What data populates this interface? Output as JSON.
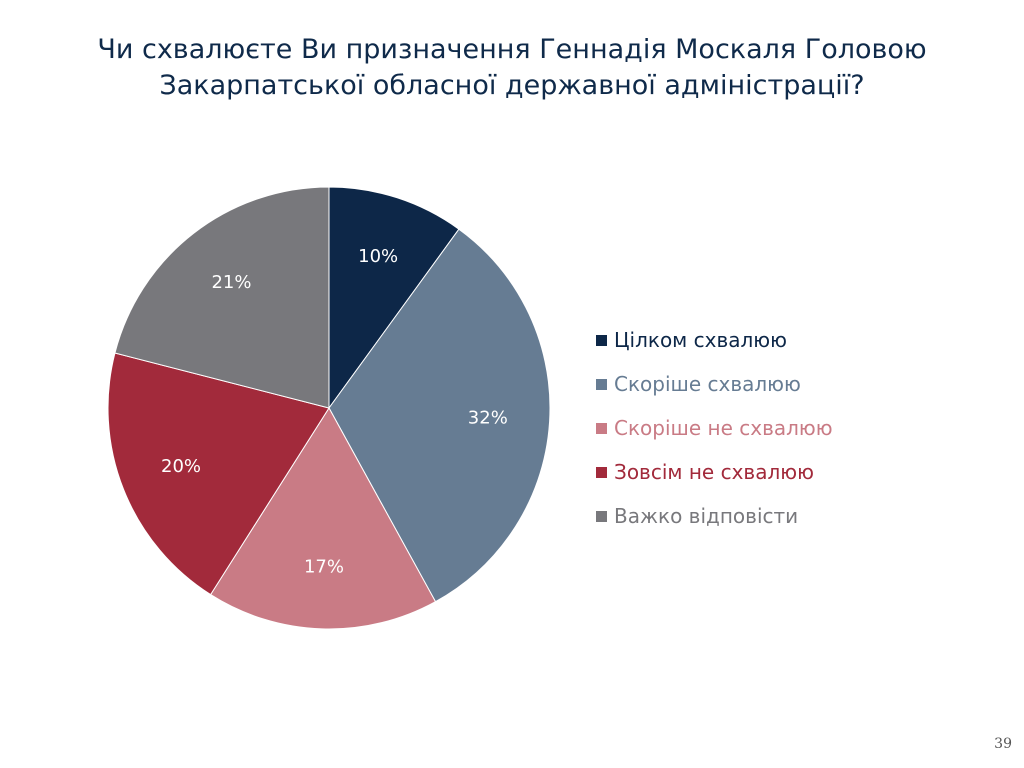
{
  "slide": {
    "title_line_1": "Чи схвалюєте Ви призначення Геннадія Москаля Головою",
    "title_line_2": "Закарпатської обласної державної адміністрації?",
    "page_number": "39"
  },
  "chart_data": {
    "type": "pie",
    "title": "Чи схвалюєте Ви призначення Геннадія Москаля Головою Закарпатської обласної державної адміністрації?",
    "legend_position": "right",
    "start": "12 o'clock, clockwise",
    "slices": [
      {
        "label": "Цілком схвалюю",
        "value": 10,
        "value_label": "10%",
        "color": "#0d2748"
      },
      {
        "label": "Скоріше схвалюю",
        "value": 32,
        "value_label": "32%",
        "color": "#667c93"
      },
      {
        "label": "Скоріше не схвалюю",
        "value": 17,
        "value_label": "17%",
        "color": "#c97b85"
      },
      {
        "label": "Зовсім не схвалюю",
        "value": 20,
        "value_label": "20%",
        "color": "#a22a3b"
      },
      {
        "label": "Важко відповісти",
        "value": 21,
        "value_label": "21%",
        "color": "#78787c"
      }
    ]
  }
}
